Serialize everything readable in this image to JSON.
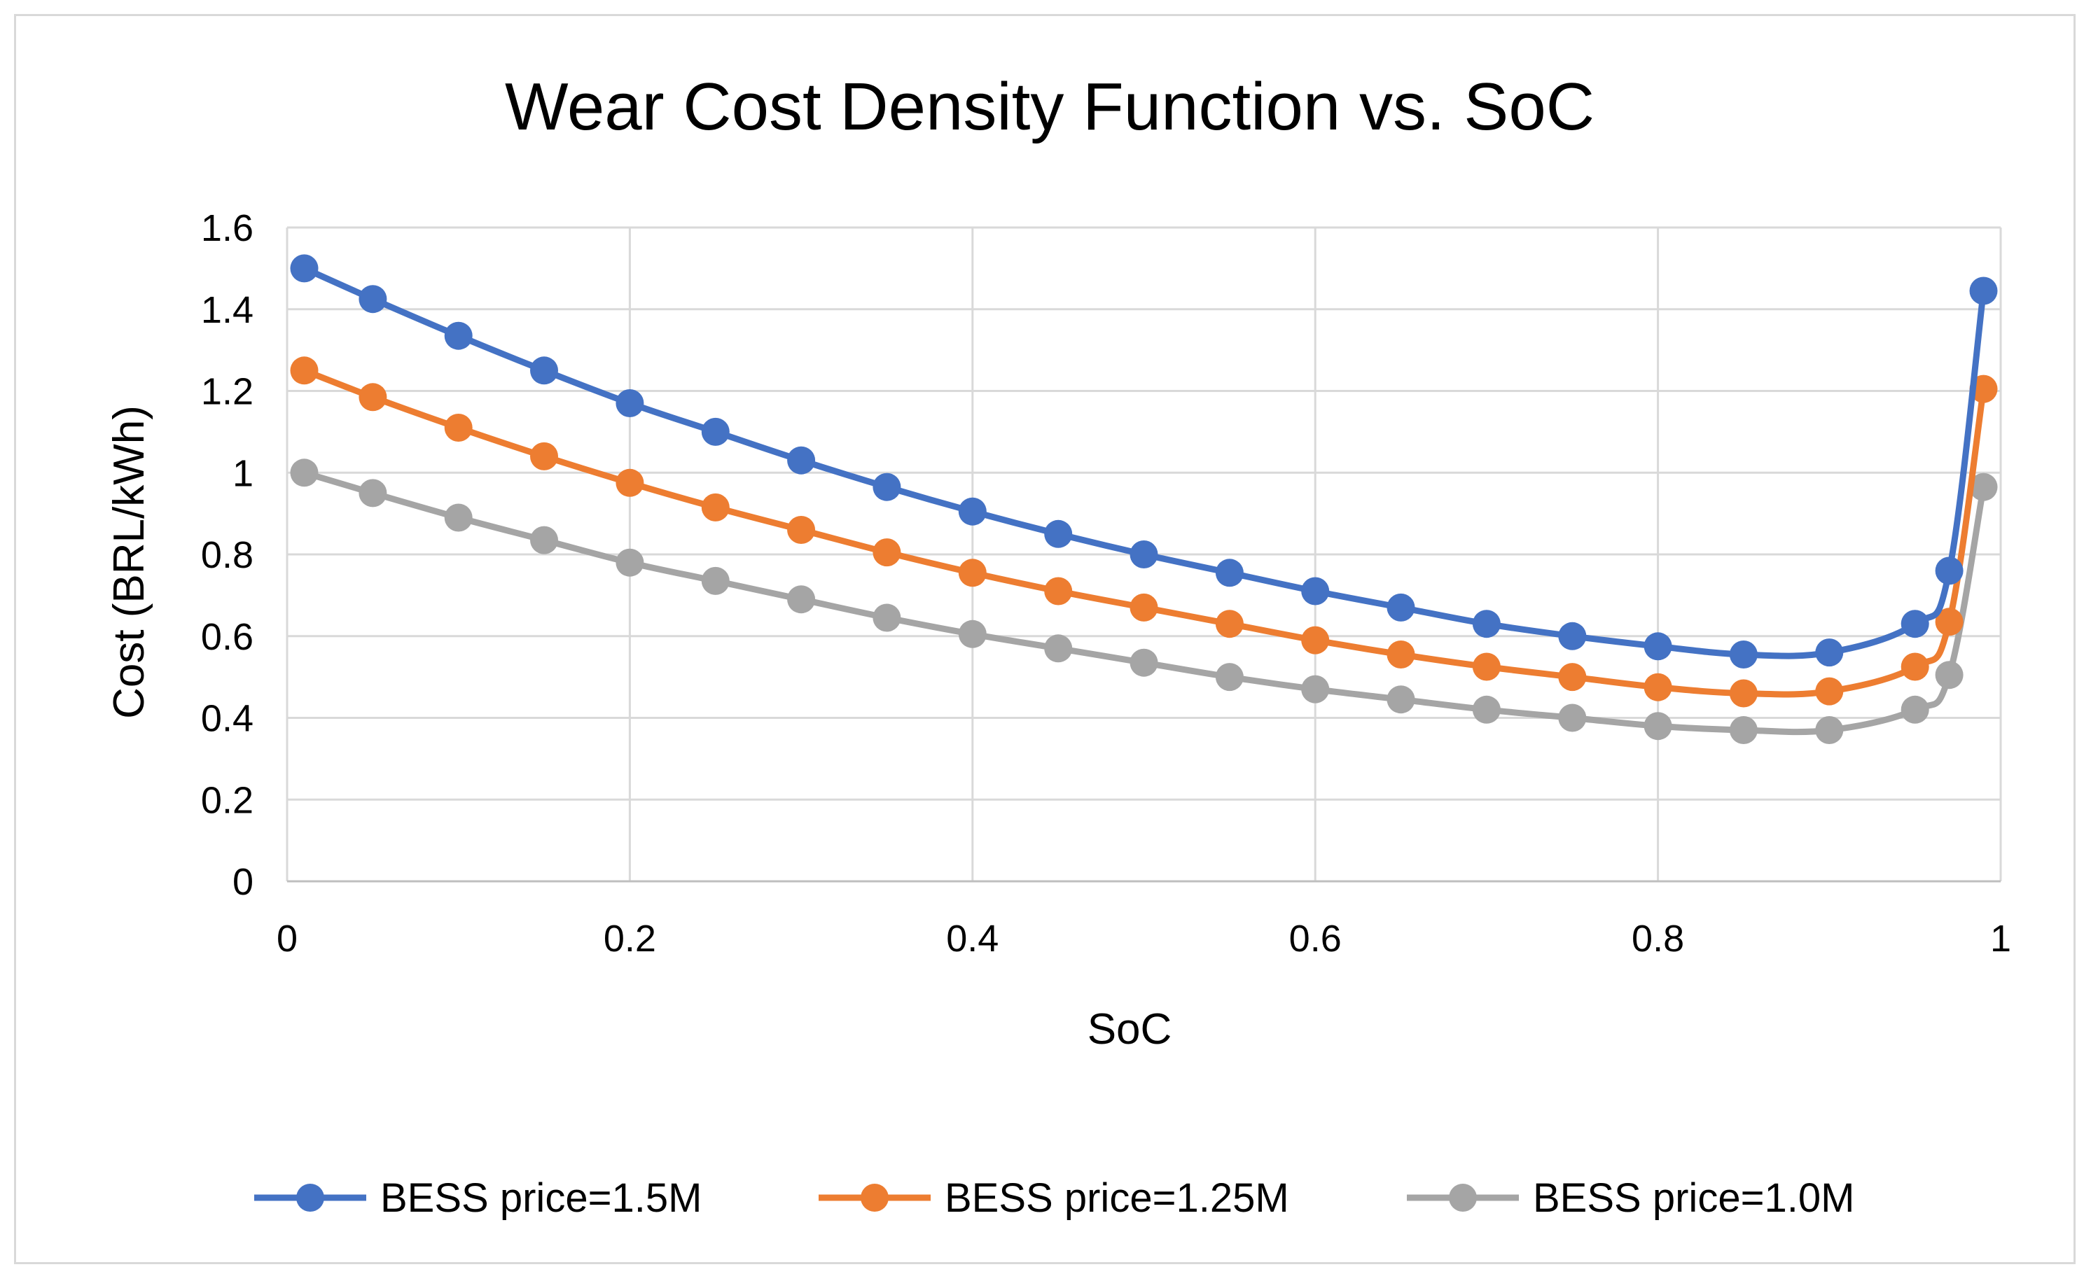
{
  "chart_data": {
    "type": "line",
    "title": "Wear Cost Density Function vs. SoC",
    "xlabel": "SoC",
    "ylabel": "Cost (BRL/kWh)",
    "xlim": [
      0,
      1
    ],
    "ylim": [
      0,
      1.6
    ],
    "x_ticks": [
      0,
      0.2,
      0.4,
      0.6,
      0.8,
      1
    ],
    "x_tick_labels": [
      "0",
      "0.2",
      "0.4",
      "0.6",
      "0.8",
      "1"
    ],
    "y_ticks": [
      0,
      0.2,
      0.4,
      0.6,
      0.8,
      1,
      1.2,
      1.4,
      1.6
    ],
    "y_tick_labels": [
      "0",
      "0.2",
      "0.4",
      "0.6",
      "0.8",
      "1",
      "1.2",
      "1.4",
      "1.6"
    ],
    "grid": true,
    "legend_position": "bottom",
    "x": [
      0.01,
      0.05,
      0.1,
      0.15,
      0.2,
      0.25,
      0.3,
      0.35,
      0.4,
      0.45,
      0.5,
      0.55,
      0.6,
      0.65,
      0.7,
      0.75,
      0.8,
      0.85,
      0.9,
      0.95,
      0.97,
      0.99
    ],
    "series": [
      {
        "name": "BESS price=1.5M",
        "color": "#4472c4",
        "values": [
          1.5,
          1.425,
          1.335,
          1.25,
          1.17,
          1.1,
          1.03,
          0.965,
          0.905,
          0.85,
          0.8,
          0.755,
          0.71,
          0.67,
          0.63,
          0.6,
          0.575,
          0.555,
          0.56,
          0.63,
          0.76,
          1.445
        ]
      },
      {
        "name": "BESS price=1.25M",
        "color": "#ed7d31",
        "values": [
          1.25,
          1.185,
          1.11,
          1.04,
          0.975,
          0.915,
          0.86,
          0.805,
          0.755,
          0.71,
          0.67,
          0.63,
          0.59,
          0.555,
          0.525,
          0.5,
          0.475,
          0.46,
          0.465,
          0.525,
          0.635,
          1.205
        ]
      },
      {
        "name": "BESS price=1.0M",
        "color": "#a5a5a5",
        "values": [
          1.0,
          0.95,
          0.89,
          0.835,
          0.78,
          0.735,
          0.69,
          0.645,
          0.605,
          0.57,
          0.535,
          0.5,
          0.47,
          0.445,
          0.42,
          0.4,
          0.38,
          0.37,
          0.37,
          0.42,
          0.505,
          0.965
        ]
      }
    ]
  }
}
